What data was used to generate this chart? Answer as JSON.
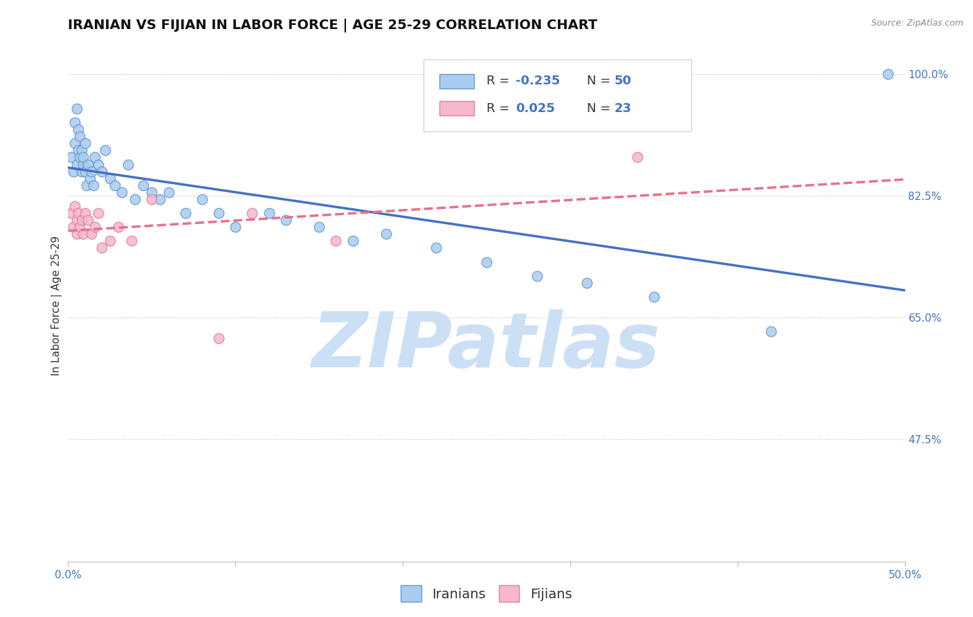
{
  "title": "IRANIAN VS FIJIAN IN LABOR FORCE | AGE 25-29 CORRELATION CHART",
  "source_text": "Source: ZipAtlas.com",
  "ylabel": "In Labor Force | Age 25-29",
  "xlim": [
    0.0,
    0.5
  ],
  "ylim": [
    0.3,
    1.035
  ],
  "xtick_pos": [
    0.0,
    0.1,
    0.2,
    0.3,
    0.4,
    0.5
  ],
  "xtick_labels": [
    "0.0%",
    "",
    "",
    "",
    "",
    "50.0%"
  ],
  "yticks_right": [
    1.0,
    0.825,
    0.65,
    0.475
  ],
  "ytick_labels_right": [
    "100.0%",
    "82.5%",
    "65.0%",
    "47.5%"
  ],
  "R_iranian": "-0.235",
  "N_iranian": "50",
  "R_fijian": "0.025",
  "N_fijian": "23",
  "color_iranian_fill": "#aaccf0",
  "color_iranian_edge": "#6699cc",
  "color_fijian_fill": "#f5b8cc",
  "color_fijian_edge": "#e080a0",
  "color_line_iranian": "#4472c4",
  "color_line_fijian": "#e8708a",
  "color_tick": "#4472c4",
  "watermark_zip": "ZIP",
  "watermark_atlas": "atlas",
  "watermark_color_zip": "#c8dff5",
  "watermark_color_atlas": "#c8dff5",
  "title_fontsize": 14,
  "axis_label_fontsize": 11,
  "tick_fontsize": 11,
  "legend_fontsize": 13,
  "iranian_x": [
    0.002,
    0.003,
    0.004,
    0.004,
    0.005,
    0.005,
    0.006,
    0.006,
    0.007,
    0.007,
    0.008,
    0.008,
    0.009,
    0.009,
    0.01,
    0.01,
    0.011,
    0.012,
    0.013,
    0.014,
    0.015,
    0.016,
    0.018,
    0.02,
    0.022,
    0.025,
    0.028,
    0.032,
    0.036,
    0.04,
    0.045,
    0.05,
    0.055,
    0.06,
    0.07,
    0.08,
    0.09,
    0.1,
    0.12,
    0.13,
    0.15,
    0.17,
    0.19,
    0.22,
    0.25,
    0.28,
    0.31,
    0.35,
    0.42,
    0.49
  ],
  "iranian_y": [
    0.88,
    0.86,
    0.93,
    0.9,
    0.87,
    0.95,
    0.89,
    0.92,
    0.91,
    0.88,
    0.86,
    0.89,
    0.87,
    0.88,
    0.86,
    0.9,
    0.84,
    0.87,
    0.85,
    0.86,
    0.84,
    0.88,
    0.87,
    0.86,
    0.89,
    0.85,
    0.84,
    0.83,
    0.87,
    0.82,
    0.84,
    0.83,
    0.82,
    0.83,
    0.8,
    0.82,
    0.8,
    0.78,
    0.8,
    0.79,
    0.78,
    0.76,
    0.77,
    0.75,
    0.73,
    0.71,
    0.7,
    0.68,
    0.63,
    1.0
  ],
  "fijian_x": [
    0.002,
    0.003,
    0.004,
    0.005,
    0.005,
    0.006,
    0.007,
    0.008,
    0.009,
    0.01,
    0.012,
    0.014,
    0.016,
    0.018,
    0.02,
    0.025,
    0.03,
    0.038,
    0.05,
    0.09,
    0.11,
    0.16,
    0.34
  ],
  "fijian_y": [
    0.8,
    0.78,
    0.81,
    0.79,
    0.77,
    0.8,
    0.78,
    0.79,
    0.77,
    0.8,
    0.79,
    0.77,
    0.78,
    0.8,
    0.75,
    0.76,
    0.78,
    0.76,
    0.82,
    0.62,
    0.8,
    0.76,
    0.88
  ],
  "line_x_start": 0.0,
  "line_x_end": 0.5
}
